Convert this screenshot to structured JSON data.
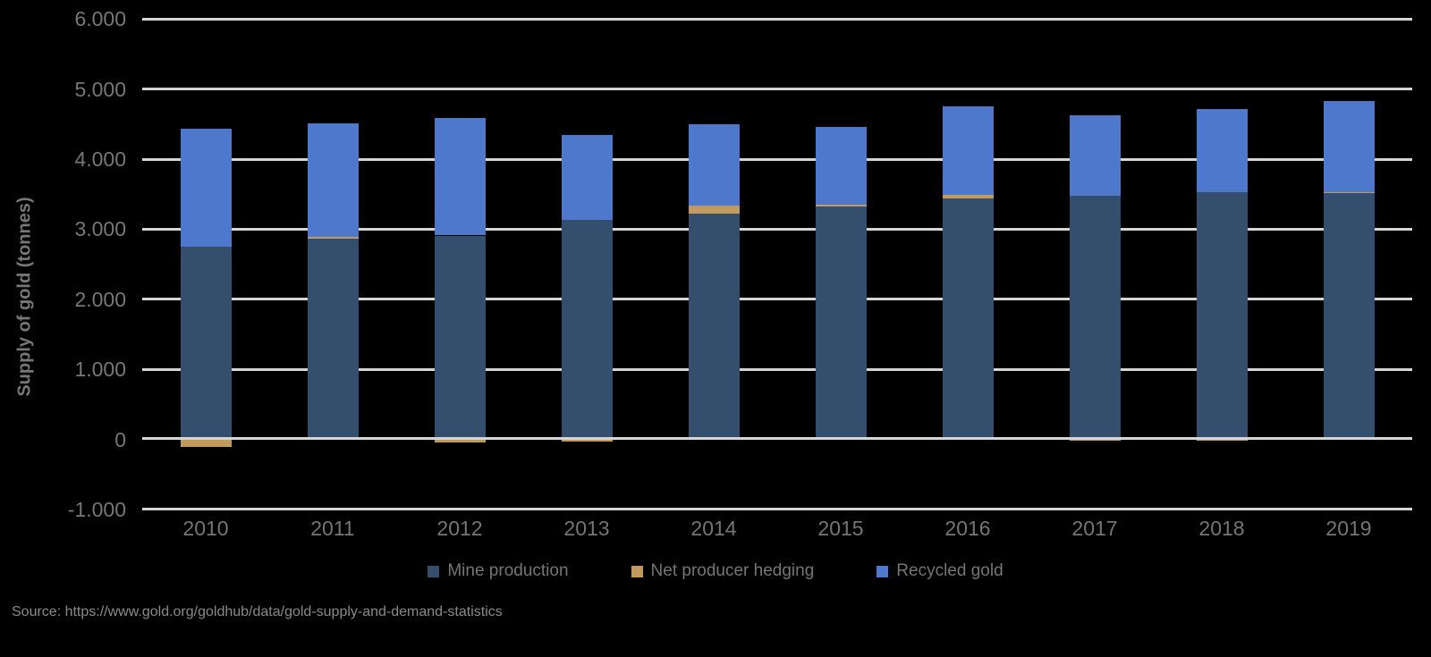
{
  "y_axis": {
    "title": "Supply of gold (tonnes)",
    "ticks": [
      {
        "value": 6000,
        "label": "6.000"
      },
      {
        "value": 5000,
        "label": "5.000"
      },
      {
        "value": 4000,
        "label": "4.000"
      },
      {
        "value": 3000,
        "label": "3.000"
      },
      {
        "value": 2000,
        "label": "2.000"
      },
      {
        "value": 1000,
        "label": "1.000"
      },
      {
        "value": 0,
        "label": "0"
      },
      {
        "value": -1000,
        "label": "-1.000"
      }
    ]
  },
  "source": {
    "text": "Source: https://www.gold.org/goldhub/data/gold-supply-and-demand-statistics"
  },
  "colors": {
    "background": "#000000",
    "gridline": "#D5D5D5",
    "axis_text": "#777777",
    "mine_production": "#344F6E",
    "net_producer_hedging": "#C39A5E",
    "recycled_gold": "#4E78CB"
  },
  "chart_data": {
    "type": "bar",
    "stacked": true,
    "categories": [
      "2010",
      "2011",
      "2012",
      "2013",
      "2014",
      "2015",
      "2016",
      "2017",
      "2018",
      "2019"
    ],
    "series": [
      {
        "name": "Mine production",
        "color": "#344F6E",
        "values": [
          2750,
          2860,
          2910,
          3130,
          3220,
          3330,
          3440,
          3480,
          3530,
          3530
        ]
      },
      {
        "name": "Net producer hedging",
        "color": "#C39A5E",
        "values": [
          -110,
          30,
          -50,
          -35,
          120,
          20,
          50,
          -25,
          -10,
          5
        ]
      },
      {
        "name": "Recycled gold",
        "color": "#4E78CB",
        "values": [
          1680,
          1620,
          1680,
          1220,
          1160,
          1110,
          1260,
          1150,
          1180,
          1290
        ]
      }
    ],
    "title": "",
    "xlabel": "",
    "ylabel": "Supply of gold (tonnes)",
    "ylim": [
      -1000,
      6000
    ],
    "ytick_step": 1000,
    "grid": true,
    "legend_position": "bottom",
    "source": "Source: https://www.gold.org/goldhub/data/gold-supply-and-demand-statistics"
  }
}
